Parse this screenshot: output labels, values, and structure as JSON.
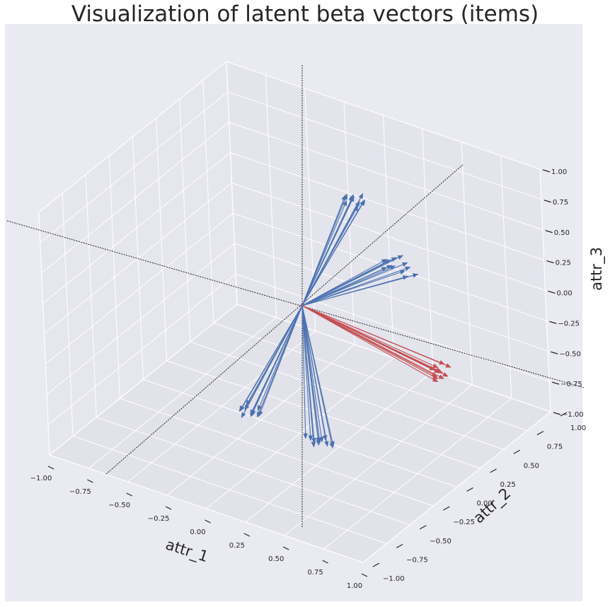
{
  "chart_data": {
    "type": "3d-quiver",
    "title": "Visualization of latent beta vectors (items)",
    "xlabel": "attr_1",
    "ylabel": "attr_2",
    "zlabel": "attr_3",
    "xlim": [
      -1,
      1
    ],
    "ylim": [
      -1,
      1
    ],
    "zlim": [
      -1,
      1
    ],
    "x_ticks": [
      "−1.00",
      "−0.75",
      "−0.50",
      "−0.25",
      "0.00",
      "0.25",
      "0.50",
      "0.75",
      "1.00"
    ],
    "y_ticks": [
      "−1.00",
      "−0.75",
      "−0.50",
      "−0.25",
      "0.00",
      "0.25",
      "0.50",
      "0.75",
      "1.00"
    ],
    "z_ticks": [
      "−1.00",
      "−0.75",
      "−0.50",
      "−0.25",
      "0.00",
      "0.25",
      "0.50",
      "0.75",
      "1.00"
    ],
    "grid": true,
    "background": "#eaeaf2",
    "series": [
      {
        "color": "#4c72b0",
        "vectors": [
          [
            0.15,
            0.4,
            0.68
          ],
          [
            0.12,
            0.38,
            0.72
          ],
          [
            0.1,
            0.42,
            0.7
          ],
          [
            0.08,
            0.45,
            0.66
          ],
          [
            0.14,
            0.36,
            0.74
          ],
          [
            0.18,
            0.4,
            0.7
          ],
          [
            0.06,
            0.4,
            0.69
          ],
          [
            0.16,
            0.44,
            0.67
          ],
          [
            0.11,
            0.33,
            0.71
          ],
          [
            0.13,
            0.47,
            0.69
          ],
          [
            0.09,
            0.37,
            0.73
          ],
          [
            0.17,
            0.35,
            0.68
          ]
        ]
      },
      {
        "color": "#4c72b0",
        "vectors": [
          [
            0.3,
            0.5,
            0.15
          ],
          [
            0.28,
            0.55,
            0.18
          ],
          [
            0.35,
            0.52,
            0.12
          ],
          [
            0.26,
            0.48,
            0.2
          ],
          [
            0.33,
            0.58,
            0.14
          ],
          [
            0.38,
            0.5,
            0.1
          ],
          [
            0.25,
            0.53,
            0.16
          ],
          [
            0.31,
            0.45,
            0.19
          ],
          [
            0.36,
            0.56,
            0.13
          ],
          [
            0.29,
            0.6,
            0.17
          ],
          [
            0.42,
            0.54,
            0.11
          ],
          [
            0.27,
            0.46,
            0.15
          ]
        ]
      },
      {
        "color": "#4c72b0",
        "vectors": [
          [
            -0.15,
            -0.4,
            -0.68
          ],
          [
            -0.12,
            -0.38,
            -0.72
          ],
          [
            -0.1,
            -0.42,
            -0.7
          ],
          [
            -0.08,
            -0.45,
            -0.66
          ],
          [
            -0.14,
            -0.36,
            -0.74
          ],
          [
            -0.18,
            -0.4,
            -0.7
          ],
          [
            -0.06,
            -0.4,
            -0.69
          ],
          [
            -0.16,
            -0.44,
            -0.67
          ],
          [
            -0.11,
            -0.33,
            -0.71
          ],
          [
            -0.13,
            -0.47,
            -0.69
          ],
          [
            -0.09,
            -0.37,
            -0.73
          ],
          [
            -0.17,
            -0.35,
            -0.68
          ]
        ]
      },
      {
        "color": "#4c72b0",
        "vectors": [
          [
            0.3,
            -0.45,
            -0.7
          ],
          [
            0.34,
            -0.42,
            -0.72
          ],
          [
            0.37,
            -0.48,
            -0.69
          ],
          [
            0.32,
            -0.4,
            -0.74
          ],
          [
            0.4,
            -0.44,
            -0.71
          ],
          [
            0.28,
            -0.47,
            -0.68
          ],
          [
            0.35,
            -0.5,
            -0.7
          ],
          [
            0.42,
            -0.41,
            -0.72
          ],
          [
            0.31,
            -0.43,
            -0.73
          ],
          [
            0.38,
            -0.46,
            -0.67
          ],
          [
            0.44,
            -0.45,
            -0.7
          ],
          [
            0.36,
            -0.39,
            -0.71
          ]
        ]
      },
      {
        "color": "#c44e52",
        "vectors": [
          [
            0.85,
            0.05,
            -0.2
          ],
          [
            0.82,
            0.08,
            -0.24
          ],
          [
            0.88,
            0.02,
            -0.18
          ],
          [
            0.8,
            0.1,
            -0.22
          ],
          [
            0.86,
            0.06,
            -0.26
          ],
          [
            0.84,
            0.0,
            -0.16
          ],
          [
            0.9,
            0.04,
            -0.21
          ],
          [
            0.83,
            0.12,
            -0.19
          ],
          [
            0.87,
            -0.02,
            -0.23
          ],
          [
            0.81,
            0.07,
            -0.27
          ],
          [
            0.89,
            0.09,
            -0.17
          ],
          [
            0.84,
            0.03,
            -0.25
          ]
        ]
      }
    ]
  }
}
